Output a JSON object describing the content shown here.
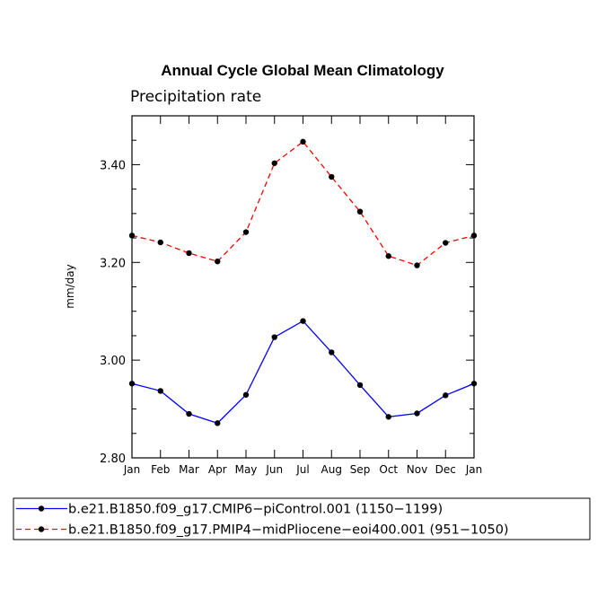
{
  "chart_data": {
    "type": "line",
    "title": "Annual Cycle Global Mean Climatology",
    "subtitle": "Precipitation rate",
    "xlabel": "",
    "ylabel": "mm/day",
    "categories": [
      "Jan",
      "Feb",
      "Mar",
      "Apr",
      "May",
      "Jun",
      "Jul",
      "Aug",
      "Sep",
      "Oct",
      "Nov",
      "Dec",
      "Jan"
    ],
    "ylim": [
      2.8,
      3.5
    ],
    "yticks": [
      "2.80",
      "3.00",
      "3.20",
      "3.40"
    ],
    "series": [
      {
        "name": "b.e21.B1850.f09_g17.CMIP6−piControl.001 (1150−1199)",
        "color": "#0000ff",
        "dash": "solid",
        "values": [
          2.952,
          2.937,
          2.89,
          2.871,
          2.929,
          3.047,
          3.08,
          3.016,
          2.949,
          2.884,
          2.891,
          2.928,
          2.952
        ]
      },
      {
        "name": "b.e21.B1850.f09_g17.PMIP4−midPliocene−eoi400.001 (951−1050)",
        "color": "#ff0000",
        "dash": "dashed",
        "values": [
          3.255,
          3.241,
          3.219,
          3.202,
          3.262,
          3.403,
          3.447,
          3.375,
          3.304,
          3.213,
          3.194,
          3.24,
          3.255
        ]
      }
    ],
    "legend_position": "bottom"
  }
}
